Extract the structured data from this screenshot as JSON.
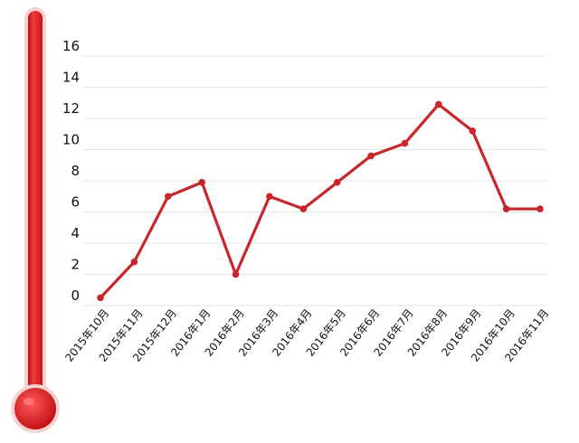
{
  "chart_data": {
    "type": "line",
    "title": "",
    "xlabel": "",
    "ylabel": "",
    "ylim": [
      0,
      16
    ],
    "yticks": [
      0,
      2,
      4,
      6,
      8,
      10,
      12,
      14,
      16
    ],
    "grid": true,
    "categories": [
      "2015年10月",
      "2015年11月",
      "2015年12月",
      "2016年1月",
      "2016年2月",
      "2016年3月",
      "2016年4月",
      "2016年5月",
      "2016年6月",
      "2016年7月",
      "2016年8月",
      "2016年9月",
      "2016年10月",
      "2016年11月"
    ],
    "series": [
      {
        "values": [
          0.5,
          2.8,
          7.0,
          7.9,
          2.0,
          7.0,
          6.2,
          7.9,
          9.6,
          10.4,
          12.9,
          11.2,
          6.2,
          6.2
        ]
      }
    ],
    "colors": {
      "line": "#c8262b",
      "thermometer": "#e3191c",
      "grid": "#e6e6e6"
    },
    "decor": {
      "thermometer": "thermometer-icon"
    }
  }
}
